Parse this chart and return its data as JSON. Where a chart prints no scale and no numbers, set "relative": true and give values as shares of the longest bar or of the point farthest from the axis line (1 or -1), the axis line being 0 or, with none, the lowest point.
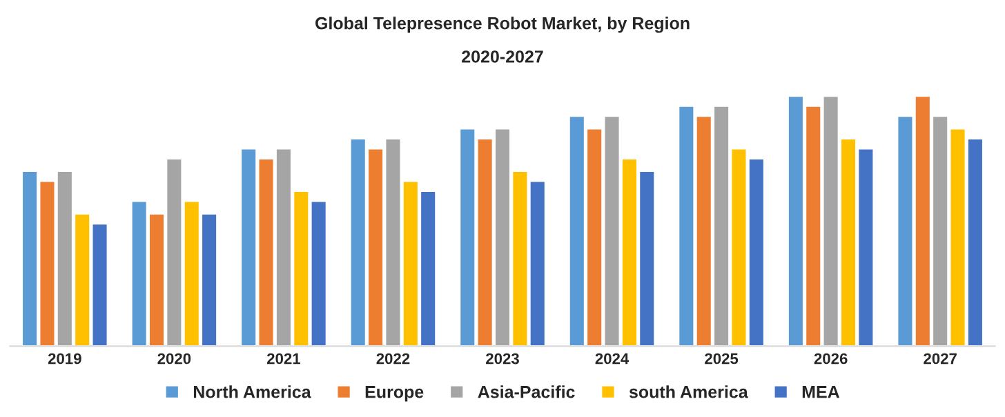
{
  "chart_data": {
    "type": "bar",
    "title": "Global Telepresence Robot Market, by Region",
    "subtitle": "2020-2027",
    "relative": true,
    "categories": [
      "2019",
      "2020",
      "2021",
      "2022",
      "2023",
      "2024",
      "2025",
      "2026",
      "2027"
    ],
    "series": [
      {
        "name": "North America",
        "color": "#5b9bd5",
        "values": [
          0.7,
          0.58,
          0.79,
          0.83,
          0.87,
          0.92,
          0.96,
          1.0,
          0.92
        ]
      },
      {
        "name": "Europe",
        "color": "#ed7d31",
        "values": [
          0.66,
          0.53,
          0.75,
          0.79,
          0.83,
          0.87,
          0.92,
          0.96,
          1.0
        ]
      },
      {
        "name": "Asia-Pacific",
        "color": "#a5a5a5",
        "values": [
          0.7,
          0.75,
          0.79,
          0.83,
          0.87,
          0.92,
          0.96,
          1.0,
          0.92
        ]
      },
      {
        "name": "south America",
        "color": "#ffc000",
        "values": [
          0.53,
          0.58,
          0.62,
          0.66,
          0.7,
          0.75,
          0.79,
          0.83,
          0.87
        ]
      },
      {
        "name": "MEA",
        "color": "#4472c4",
        "values": [
          0.49,
          0.53,
          0.58,
          0.62,
          0.66,
          0.7,
          0.75,
          0.79,
          0.83
        ]
      }
    ],
    "grid": false,
    "legend": "bottom"
  }
}
